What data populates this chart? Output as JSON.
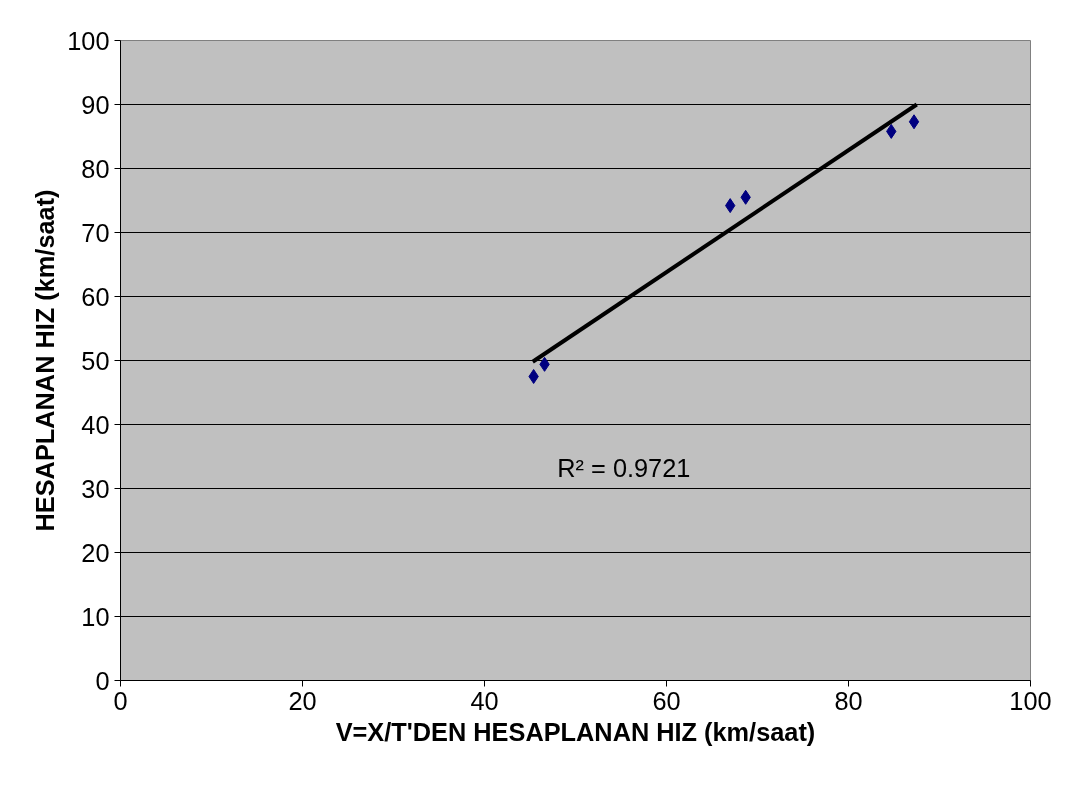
{
  "chart_data": {
    "type": "scatter",
    "xlabel": "V=X/T'DEN HESAPLANAN HIZ (km/saat)",
    "ylabel": "HESAPLANAN HIZ (km/saat)",
    "xlim": [
      0,
      100
    ],
    "ylim": [
      0,
      100
    ],
    "xticks": [
      0,
      20,
      40,
      60,
      80,
      100
    ],
    "yticks": [
      0,
      10,
      20,
      30,
      40,
      50,
      60,
      70,
      80,
      90,
      100
    ],
    "grid": "y",
    "series": [
      {
        "marker": "diamond",
        "color": "#000080",
        "x": [
          45.4,
          46.6,
          67.0,
          68.7,
          84.7,
          87.2
        ],
        "values": [
          47.5,
          49.4,
          74.2,
          75.5,
          85.8,
          87.3
        ]
      },
      {
        "type": "line",
        "color": "#000000",
        "x": [
          45.3,
          87.5
        ],
        "values": [
          49.8,
          90.0
        ]
      }
    ],
    "annotations": [
      "R² = 0.9721"
    ]
  }
}
